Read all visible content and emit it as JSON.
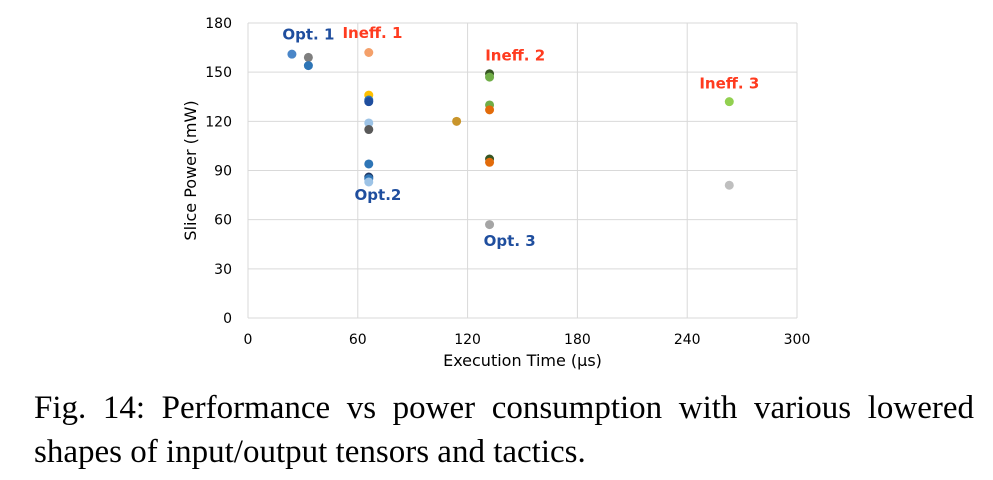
{
  "caption": "Fig. 14: Performance vs power consumption with various lowered shapes of input/output tensors and tactics.",
  "chart_data": {
    "type": "scatter",
    "xlabel": "Execution Time (µs)",
    "ylabel": "Slice Power (mW)",
    "xlim": [
      0,
      300
    ],
    "ylim": [
      0,
      180
    ],
    "xticks": [
      0,
      60,
      120,
      180,
      240,
      300
    ],
    "yticks": [
      0,
      30,
      60,
      90,
      120,
      150,
      180
    ],
    "grid": true,
    "points": [
      {
        "x": 24,
        "y": 161,
        "color": "#4a86c8"
      },
      {
        "x": 33,
        "y": 159,
        "color": "#7f7f7f"
      },
      {
        "x": 33,
        "y": 154,
        "color": "#2e75b6"
      },
      {
        "x": 66,
        "y": 162,
        "color": "#f4a06a"
      },
      {
        "x": 66,
        "y": 136,
        "color": "#ffc000"
      },
      {
        "x": 66,
        "y": 133,
        "color": "#2e75b6"
      },
      {
        "x": 66,
        "y": 132,
        "color": "#1f4e9e"
      },
      {
        "x": 66,
        "y": 119,
        "color": "#9dc3e6"
      },
      {
        "x": 66,
        "y": 115,
        "color": "#595959"
      },
      {
        "x": 66,
        "y": 94,
        "color": "#2e75b6"
      },
      {
        "x": 66,
        "y": 86,
        "color": "#1f3864"
      },
      {
        "x": 66,
        "y": 85,
        "color": "#2e75b6"
      },
      {
        "x": 66,
        "y": 83,
        "color": "#9dc3e6"
      },
      {
        "x": 114,
        "y": 120,
        "color": "#c9952b"
      },
      {
        "x": 132,
        "y": 149,
        "color": "#375623"
      },
      {
        "x": 132,
        "y": 147,
        "color": "#70ad47"
      },
      {
        "x": 132,
        "y": 130,
        "color": "#70ad47"
      },
      {
        "x": 132,
        "y": 127,
        "color": "#e26b0a"
      },
      {
        "x": 132,
        "y": 97,
        "color": "#375623"
      },
      {
        "x": 132,
        "y": 95,
        "color": "#e26b0a"
      },
      {
        "x": 132,
        "y": 57,
        "color": "#a5a5a5"
      },
      {
        "x": 263,
        "y": 132,
        "color": "#92d050"
      },
      {
        "x": 263,
        "y": 81,
        "color": "#bfbfbf"
      }
    ],
    "annotations": [
      {
        "text": "Opt. 1",
        "x": 33,
        "y": 170,
        "color": "#1f4e9e"
      },
      {
        "text": "Ineff. 1",
        "x": 68,
        "y": 171,
        "color": "#ff3b1f"
      },
      {
        "text": "Opt.2",
        "x": 71,
        "y": 72,
        "color": "#1f4e9e"
      },
      {
        "text": "Ineff. 2",
        "x": 146,
        "y": 157,
        "color": "#ff3b1f"
      },
      {
        "text": "Opt. 3",
        "x": 143,
        "y": 44,
        "color": "#1f4e9e"
      },
      {
        "text": "Ineff. 3",
        "x": 263,
        "y": 140,
        "color": "#ff3b1f"
      }
    ]
  }
}
